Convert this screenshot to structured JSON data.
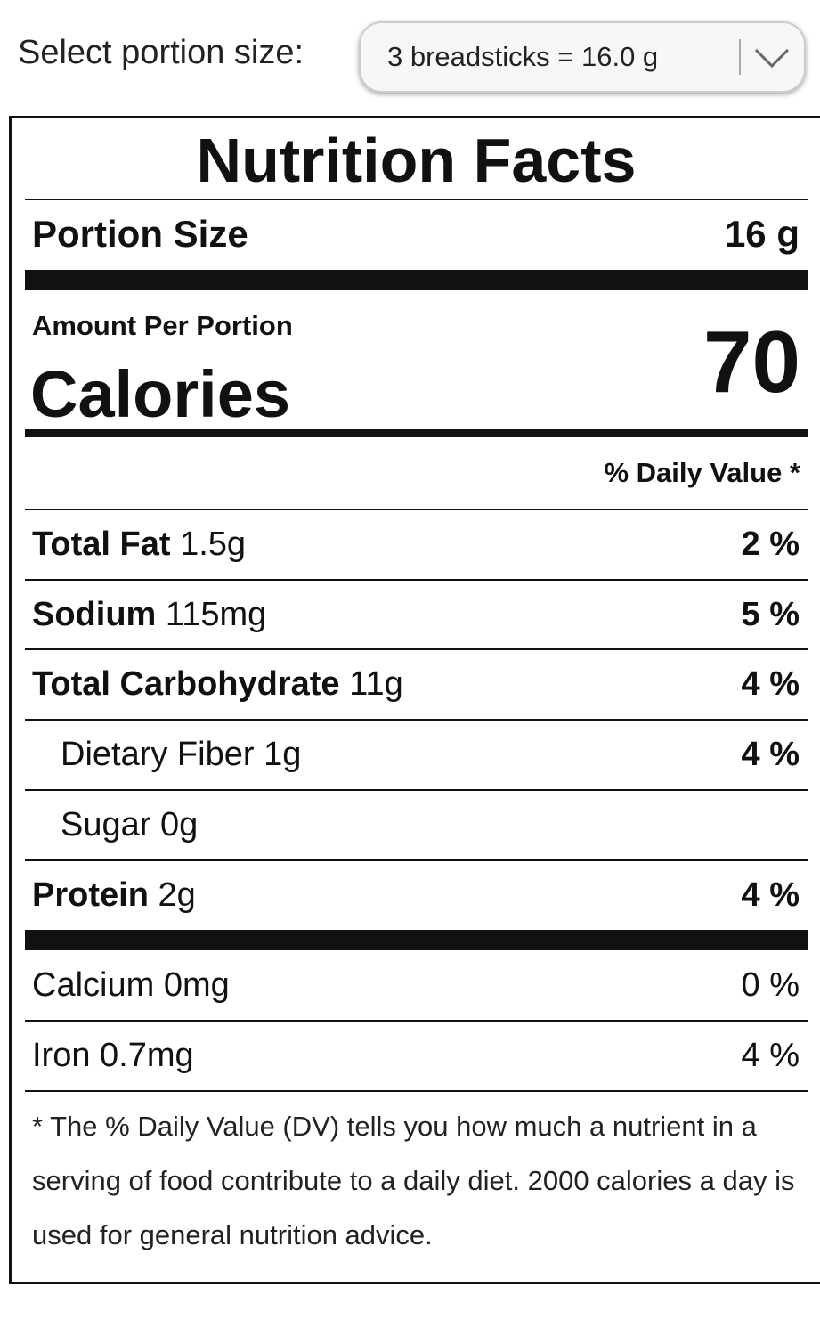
{
  "selector": {
    "label": "Select portion size:",
    "value": "3 breadsticks = 16.0 g"
  },
  "label": {
    "title": "Nutrition Facts",
    "portion": {
      "label": "Portion Size",
      "value": "16 g"
    },
    "amount_label": "Amount Per Portion",
    "calories": {
      "label": "Calories",
      "value": "70"
    },
    "dv_header": "% Daily Value *",
    "nutrients": [
      {
        "name": "Total Fat",
        "amount": "1.5g",
        "dv": "2 %"
      },
      {
        "name": "Sodium",
        "amount": "115mg",
        "dv": "5 %"
      },
      {
        "name": "Total Carbohydrate",
        "amount": "11g",
        "dv": "4 %"
      },
      {
        "name": "Dietary Fiber",
        "amount": "1g",
        "dv": "4 %"
      },
      {
        "name": "Sugar",
        "amount": "0g"
      },
      {
        "name": "Protein",
        "amount": "2g",
        "dv": "4 %"
      }
    ],
    "minerals": [
      {
        "name": "Calcium",
        "amount": "0mg",
        "dv": "0 %"
      },
      {
        "name": "Iron",
        "amount": "0.7mg",
        "dv": "4 %"
      }
    ],
    "footnote": "* The % Daily Value (DV) tells you how much a nutrient in a serving of food contribute to a daily diet. 2000 calories a day is used for general nutrition advice."
  }
}
